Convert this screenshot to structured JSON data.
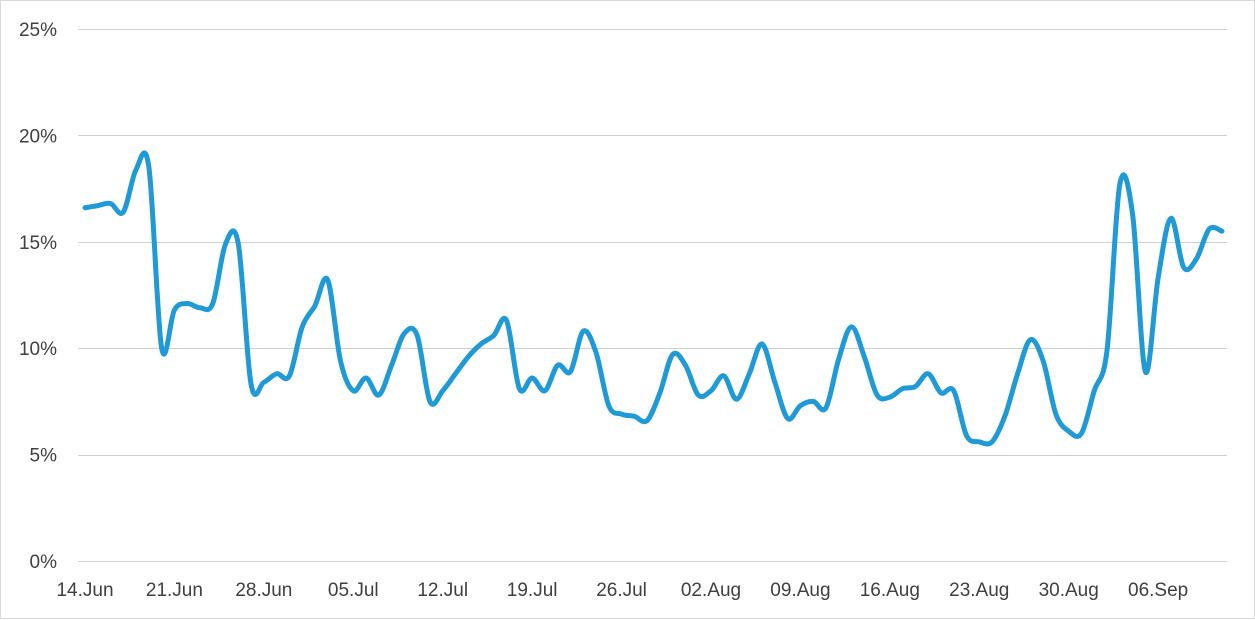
{
  "chart_data": {
    "type": "line",
    "title": "",
    "xlabel": "",
    "ylabel": "",
    "x_ticks": [
      "14.Jun",
      "21.Jun",
      "28.Jun",
      "05.Jul",
      "12.Jul",
      "19.Jul",
      "26.Jul",
      "02.Aug",
      "09.Aug",
      "16.Aug",
      "23.Aug",
      "30.Aug",
      "06.Sep"
    ],
    "y_ticks": [
      "0%",
      "5%",
      "10%",
      "15%",
      "20%",
      "25%"
    ],
    "ylim": [
      0,
      25
    ],
    "grid": true,
    "legend": "none",
    "series_color": "#1f9ad6",
    "gridline_color": "#d0d0d0",
    "tick_color": "#404040",
    "series": [
      {
        "x": [
          "2020-06-14",
          "2020-06-15",
          "2020-06-16",
          "2020-06-17",
          "2020-06-18",
          "2020-06-19",
          "2020-06-20",
          "2020-06-21",
          "2020-06-22",
          "2020-06-23",
          "2020-06-24",
          "2020-06-25",
          "2020-06-26",
          "2020-06-27",
          "2020-06-28",
          "2020-06-29",
          "2020-06-30",
          "2020-07-01",
          "2020-07-02",
          "2020-07-03",
          "2020-07-04",
          "2020-07-05",
          "2020-07-06",
          "2020-07-07",
          "2020-07-08",
          "2020-07-09",
          "2020-07-10",
          "2020-07-11",
          "2020-07-12",
          "2020-07-13",
          "2020-07-14",
          "2020-07-15",
          "2020-07-16",
          "2020-07-17",
          "2020-07-18",
          "2020-07-19",
          "2020-07-20",
          "2020-07-21",
          "2020-07-22",
          "2020-07-23",
          "2020-07-24",
          "2020-07-25",
          "2020-07-26",
          "2020-07-27",
          "2020-07-28",
          "2020-07-29",
          "2020-07-30",
          "2020-07-31",
          "2020-08-01",
          "2020-08-02",
          "2020-08-03",
          "2020-08-04",
          "2020-08-05",
          "2020-08-06",
          "2020-08-07",
          "2020-08-08",
          "2020-08-09",
          "2020-08-10",
          "2020-08-11",
          "2020-08-12",
          "2020-08-13",
          "2020-08-14",
          "2020-08-15",
          "2020-08-16",
          "2020-08-17",
          "2020-08-18",
          "2020-08-19",
          "2020-08-20",
          "2020-08-21",
          "2020-08-22",
          "2020-08-23",
          "2020-08-24",
          "2020-08-25",
          "2020-08-26",
          "2020-08-27",
          "2020-08-28",
          "2020-08-29",
          "2020-08-30",
          "2020-08-31",
          "2020-09-01",
          "2020-09-02",
          "2020-09-03",
          "2020-09-04",
          "2020-09-05",
          "2020-09-06",
          "2020-09-07",
          "2020-09-08",
          "2020-09-09",
          "2020-09-10",
          "2020-09-11"
        ],
        "values": [
          16.6,
          16.7,
          16.8,
          16.4,
          18.4,
          18.5,
          10.0,
          11.8,
          12.1,
          11.9,
          12.1,
          14.9,
          14.9,
          8.3,
          8.4,
          8.8,
          8.7,
          11.0,
          12.0,
          13.2,
          9.4,
          8.0,
          8.6,
          7.8,
          9.2,
          10.7,
          10.6,
          7.5,
          8.0,
          8.8,
          9.6,
          10.2,
          10.6,
          11.3,
          8.1,
          8.6,
          8.0,
          9.2,
          8.9,
          10.8,
          9.8,
          7.3,
          6.9,
          6.8,
          6.6,
          7.9,
          9.7,
          9.2,
          7.8,
          8.0,
          8.7,
          7.6,
          8.8,
          10.2,
          8.4,
          6.7,
          7.3,
          7.5,
          7.2,
          9.5,
          11.0,
          9.6,
          7.8,
          7.7,
          8.1,
          8.2,
          8.8,
          7.9,
          8.0,
          5.9,
          5.6,
          5.6,
          6.8,
          8.8,
          10.4,
          9.4,
          6.9,
          6.1,
          6.0,
          8.0,
          9.9,
          17.7,
          16.3,
          8.9,
          13.3,
          16.1,
          13.8,
          14.2,
          15.6,
          15.5
        ]
      }
    ]
  }
}
